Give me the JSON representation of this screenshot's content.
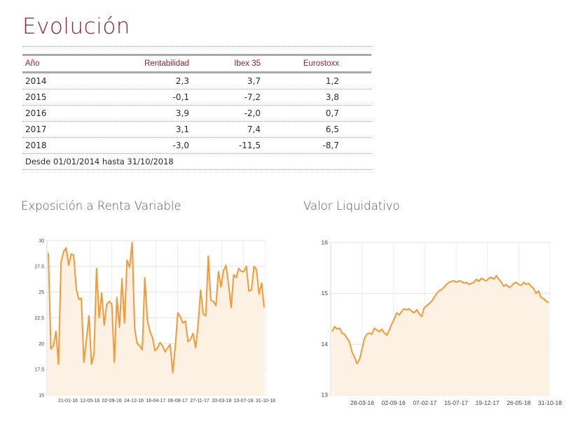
{
  "page": {
    "title": "Evolución"
  },
  "table": {
    "headers": [
      "Año",
      "Rentabilidad",
      "Ibex 35",
      "Eurostoxx"
    ],
    "rows": [
      [
        "2014",
        "2,3",
        "3,7",
        "1,2"
      ],
      [
        "2015",
        "-0,1",
        "-7,2",
        "3,8"
      ],
      [
        "2016",
        "3,9",
        "-2,0",
        "0,7"
      ],
      [
        "2017",
        "3,1",
        "7,4",
        "6,5"
      ],
      [
        "2018",
        "-3,0",
        "-11,5",
        "-8,7"
      ]
    ],
    "footnote": "Desde 01/01/2014 hasta 31/10/2018"
  },
  "chart_data": [
    {
      "type": "line",
      "title": "Exposición a Renta Variable",
      "ylim": [
        15,
        30
      ],
      "yticks": [
        15,
        17.5,
        20,
        22.5,
        25,
        27.5,
        30
      ],
      "ytick_labels": [
        "15",
        "17.5",
        "20",
        "22.5",
        "25",
        "27.5",
        "30"
      ],
      "xtick_labels": [
        "21-01-16",
        "12-05-16",
        "02-09-16",
        "24-12-16",
        "16-04-17",
        "06-08-17",
        "27-11-17",
        "20-03-18",
        "10-07-18",
        "31-10-18"
      ],
      "series": [
        {
          "values": [
            28.8,
            19.5,
            19.8,
            21.2,
            18.0,
            27.9,
            28.9,
            29.3,
            27.6,
            28.7,
            28.6,
            25.3,
            24.3,
            24.4,
            18.2,
            20.4,
            22.7,
            18.0,
            19.0,
            27.3,
            22.5,
            24.9,
            21.8,
            23.8,
            24.1,
            23.8,
            18.2,
            24.5,
            21.6,
            26.3,
            22.0,
            28.1,
            27.4,
            29.8,
            21.5,
            20.0,
            19.8,
            19.4,
            26.4,
            22.3,
            21.2,
            20.6,
            19.3,
            19.6,
            20.1,
            19.8,
            19.2,
            19.6,
            19.9,
            17.2,
            19.7,
            23.0,
            22.6,
            22.0,
            22.2,
            20.2,
            20.4,
            21.0,
            19.6,
            21.9,
            25.2,
            22.9,
            22.7,
            28.5,
            24.2,
            24.1,
            23.7,
            27.0,
            25.5,
            27.1,
            27.6,
            25.7,
            23.5,
            26.7,
            26.4,
            27.3,
            27.0,
            27.0,
            27.5,
            25.1,
            25.2,
            27.5,
            27.2,
            24.8,
            25.9,
            23.5
          ]
        }
      ]
    },
    {
      "type": "line",
      "title": "Valor Liquidativo",
      "ylim": [
        13,
        16
      ],
      "yticks": [
        13,
        14,
        15,
        16
      ],
      "ytick_labels": [
        "13",
        "14",
        "15",
        "16"
      ],
      "xtick_labels": [
        "28-03-16",
        "02-09-16",
        "07-02-17",
        "15-07-17",
        "19-12-17",
        "26-05-18",
        "31-10-18"
      ],
      "series": [
        {
          "values": [
            14.25,
            14.35,
            14.3,
            14.32,
            14.22,
            14.2,
            14.12,
            14.05,
            13.85,
            13.75,
            13.62,
            13.7,
            13.9,
            14.12,
            14.2,
            14.22,
            14.2,
            14.32,
            14.28,
            14.25,
            14.3,
            14.22,
            14.18,
            14.28,
            14.4,
            14.5,
            14.62,
            14.58,
            14.65,
            14.7,
            14.68,
            14.7,
            14.65,
            14.62,
            14.68,
            14.6,
            14.55,
            14.72,
            14.76,
            14.8,
            14.85,
            14.92,
            15.0,
            15.05,
            15.08,
            15.12,
            15.18,
            15.22,
            15.24,
            15.25,
            15.22,
            15.25,
            15.24,
            15.2,
            15.22,
            15.18,
            15.2,
            15.22,
            15.28,
            15.24,
            15.3,
            15.27,
            15.25,
            15.3,
            15.32,
            15.28,
            15.35,
            15.28,
            15.22,
            15.14,
            15.18,
            15.12,
            15.14,
            15.2,
            15.22,
            15.18,
            15.16,
            15.22,
            15.18,
            15.2,
            15.14,
            15.1,
            15.0,
            15.05,
            14.92,
            14.9,
            14.85,
            14.82
          ]
        }
      ]
    }
  ]
}
